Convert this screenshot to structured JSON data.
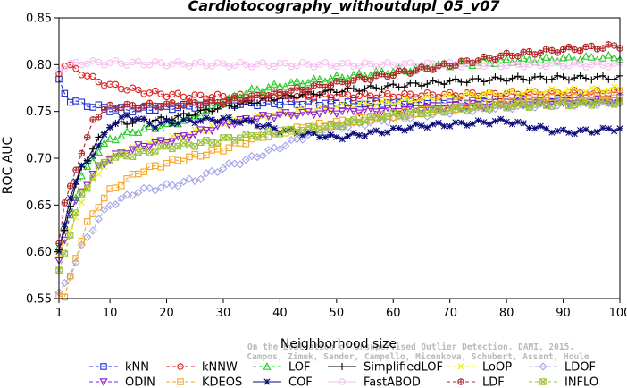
{
  "chart_data": {
    "type": "line",
    "title": "Cardiotocography_withoutdupl_05_v07",
    "xlabel": "Neighborhood size",
    "ylabel": "ROC AUC",
    "xlim": [
      1,
      100
    ],
    "ylim": [
      0.55,
      0.85
    ],
    "xticks": [
      "1",
      "10",
      "20",
      "30",
      "40",
      "50",
      "60",
      "70",
      "80",
      "90",
      "100"
    ],
    "yticks": [
      "0.55",
      "0.60",
      "0.65",
      "0.70",
      "0.75",
      "0.80",
      "0.85"
    ],
    "grid": false,
    "legend_position": "bottom",
    "watermark": [
      "Campos, Zimek, Sander, Campello, Micenkova, Schubert, Assent, Houle",
      "On the Evaluation of Unsupervised Outlier Detection. DAMI, 2015."
    ],
    "series": [
      {
        "name": "kNN",
        "color": "#1f2fcf",
        "marker": "square",
        "dash": "4,3",
        "points": [
          [
            1,
            0.782
          ],
          [
            2,
            0.77
          ],
          [
            3,
            0.762
          ],
          [
            5,
            0.758
          ],
          [
            8,
            0.755
          ],
          [
            10,
            0.752
          ],
          [
            15,
            0.752
          ],
          [
            20,
            0.754
          ],
          [
            30,
            0.758
          ],
          [
            40,
            0.759
          ],
          [
            50,
            0.759
          ],
          [
            60,
            0.76
          ],
          [
            70,
            0.761
          ],
          [
            80,
            0.762
          ],
          [
            90,
            0.763
          ],
          [
            100,
            0.764
          ]
        ]
      },
      {
        "name": "kNNW",
        "color": "#e02020",
        "marker": "circle",
        "dash": "4,3",
        "points": [
          [
            1,
            0.792
          ],
          [
            2,
            0.8
          ],
          [
            4,
            0.795
          ],
          [
            6,
            0.788
          ],
          [
            8,
            0.782
          ],
          [
            10,
            0.778
          ],
          [
            15,
            0.772
          ],
          [
            20,
            0.768
          ],
          [
            25,
            0.766
          ],
          [
            30,
            0.766
          ],
          [
            35,
            0.766
          ],
          [
            40,
            0.766
          ],
          [
            50,
            0.767
          ],
          [
            60,
            0.767
          ],
          [
            70,
            0.768
          ],
          [
            80,
            0.769
          ],
          [
            90,
            0.77
          ],
          [
            100,
            0.771
          ]
        ]
      },
      {
        "name": "LOF",
        "color": "#22cc22",
        "marker": "triangle",
        "dash": "4,3",
        "points": [
          [
            1,
            0.605
          ],
          [
            3,
            0.64
          ],
          [
            5,
            0.68
          ],
          [
            8,
            0.708
          ],
          [
            10,
            0.72
          ],
          [
            15,
            0.73
          ],
          [
            20,
            0.735
          ],
          [
            25,
            0.745
          ],
          [
            30,
            0.76
          ],
          [
            35,
            0.772
          ],
          [
            40,
            0.778
          ],
          [
            50,
            0.786
          ],
          [
            60,
            0.793
          ],
          [
            70,
            0.8
          ],
          [
            80,
            0.804
          ],
          [
            90,
            0.806
          ],
          [
            100,
            0.808
          ]
        ]
      },
      {
        "name": "SimplifiedLOF",
        "color": "#000000",
        "marker": "plus",
        "dash": "",
        "points": [
          [
            1,
            0.6
          ],
          [
            3,
            0.65
          ],
          [
            5,
            0.69
          ],
          [
            8,
            0.72
          ],
          [
            10,
            0.735
          ],
          [
            15,
            0.74
          ],
          [
            20,
            0.742
          ],
          [
            25,
            0.748
          ],
          [
            30,
            0.755
          ],
          [
            40,
            0.765
          ],
          [
            50,
            0.772
          ],
          [
            60,
            0.777
          ],
          [
            70,
            0.782
          ],
          [
            80,
            0.785
          ],
          [
            90,
            0.786
          ],
          [
            100,
            0.786
          ]
        ]
      },
      {
        "name": "LoOP",
        "color": "#f0f000",
        "marker": "x",
        "dash": "4,3",
        "points": [
          [
            1,
            0.6
          ],
          [
            3,
            0.62
          ],
          [
            5,
            0.655
          ],
          [
            8,
            0.685
          ],
          [
            10,
            0.7
          ],
          [
            15,
            0.712
          ],
          [
            20,
            0.72
          ],
          [
            25,
            0.728
          ],
          [
            30,
            0.738
          ],
          [
            40,
            0.748
          ],
          [
            50,
            0.755
          ],
          [
            60,
            0.76
          ],
          [
            70,
            0.766
          ],
          [
            80,
            0.77
          ],
          [
            90,
            0.772
          ],
          [
            100,
            0.774
          ]
        ]
      },
      {
        "name": "LDOF",
        "color": "#a5a5e6",
        "marker": "diamond",
        "dash": "4,3",
        "points": [
          [
            1,
            0.555
          ],
          [
            3,
            0.575
          ],
          [
            5,
            0.605
          ],
          [
            8,
            0.635
          ],
          [
            10,
            0.65
          ],
          [
            15,
            0.665
          ],
          [
            20,
            0.67
          ],
          [
            25,
            0.677
          ],
          [
            30,
            0.69
          ],
          [
            35,
            0.7
          ],
          [
            40,
            0.712
          ],
          [
            45,
            0.725
          ],
          [
            50,
            0.733
          ],
          [
            60,
            0.742
          ],
          [
            70,
            0.75
          ],
          [
            80,
            0.755
          ],
          [
            90,
            0.758
          ],
          [
            100,
            0.76
          ]
        ]
      },
      {
        "name": "ODIN",
        "color": "#8d1fcf",
        "marker": "triangle-down",
        "dash": "4,3",
        "points": [
          [
            1,
            0.59
          ],
          [
            3,
            0.64
          ],
          [
            5,
            0.665
          ],
          [
            8,
            0.69
          ],
          [
            10,
            0.7
          ],
          [
            15,
            0.712
          ],
          [
            20,
            0.718
          ],
          [
            25,
            0.726
          ],
          [
            30,
            0.736
          ],
          [
            35,
            0.742
          ],
          [
            40,
            0.746
          ],
          [
            50,
            0.75
          ],
          [
            60,
            0.752
          ],
          [
            70,
            0.755
          ],
          [
            80,
            0.758
          ],
          [
            90,
            0.76
          ],
          [
            100,
            0.762
          ]
        ]
      },
      {
        "name": "KDEOS",
        "color": "#f5a623",
        "marker": "square",
        "dash": "4,3",
        "points": [
          [
            1,
            0.555
          ],
          [
            2,
            0.55
          ],
          [
            4,
            0.595
          ],
          [
            6,
            0.63
          ],
          [
            8,
            0.65
          ],
          [
            10,
            0.665
          ],
          [
            15,
            0.685
          ],
          [
            20,
            0.695
          ],
          [
            25,
            0.702
          ],
          [
            30,
            0.71
          ],
          [
            35,
            0.72
          ],
          [
            40,
            0.728
          ],
          [
            50,
            0.738
          ],
          [
            60,
            0.746
          ],
          [
            70,
            0.754
          ],
          [
            80,
            0.76
          ],
          [
            90,
            0.764
          ],
          [
            100,
            0.766
          ]
        ]
      },
      {
        "name": "COF",
        "color": "#0b0b7a",
        "marker": "asterisk",
        "dash": "",
        "points": [
          [
            1,
            0.598
          ],
          [
            3,
            0.66
          ],
          [
            5,
            0.69
          ],
          [
            8,
            0.712
          ],
          [
            10,
            0.735
          ],
          [
            13,
            0.745
          ],
          [
            15,
            0.742
          ],
          [
            18,
            0.735
          ],
          [
            20,
            0.738
          ],
          [
            25,
            0.74
          ],
          [
            30,
            0.742
          ],
          [
            35,
            0.738
          ],
          [
            40,
            0.73
          ],
          [
            45,
            0.726
          ],
          [
            50,
            0.722
          ],
          [
            55,
            0.726
          ],
          [
            60,
            0.73
          ],
          [
            65,
            0.735
          ],
          [
            70,
            0.736
          ],
          [
            75,
            0.738
          ],
          [
            80,
            0.74
          ],
          [
            85,
            0.733
          ],
          [
            90,
            0.728
          ],
          [
            95,
            0.729
          ],
          [
            100,
            0.732
          ]
        ]
      },
      {
        "name": "FastABOD",
        "color": "#f5bdf0",
        "marker": "circle",
        "dash": "",
        "points": [
          [
            1,
            0.795
          ],
          [
            3,
            0.8
          ],
          [
            5,
            0.802
          ],
          [
            10,
            0.802
          ],
          [
            20,
            0.801
          ],
          [
            30,
            0.8
          ],
          [
            40,
            0.8
          ],
          [
            50,
            0.8
          ],
          [
            60,
            0.8
          ],
          [
            70,
            0.8
          ],
          [
            80,
            0.8
          ],
          [
            90,
            0.8
          ],
          [
            100,
            0.8
          ]
        ]
      },
      {
        "name": "LDF",
        "color": "#b02828",
        "marker": "circle-plus",
        "dash": "4,3",
        "points": [
          [
            1,
            0.61
          ],
          [
            2,
            0.65
          ],
          [
            4,
            0.69
          ],
          [
            6,
            0.72
          ],
          [
            7,
            0.742
          ],
          [
            10,
            0.755
          ],
          [
            15,
            0.756
          ],
          [
            20,
            0.757
          ],
          [
            30,
            0.76
          ],
          [
            40,
            0.77
          ],
          [
            50,
            0.78
          ],
          [
            60,
            0.79
          ],
          [
            70,
            0.8
          ],
          [
            80,
            0.81
          ],
          [
            90,
            0.816
          ],
          [
            100,
            0.82
          ]
        ]
      },
      {
        "name": "INFLO",
        "color": "#9ac23a",
        "marker": "hourglass",
        "dash": "4,3",
        "points": [
          [
            1,
            0.578
          ],
          [
            3,
            0.62
          ],
          [
            5,
            0.66
          ],
          [
            8,
            0.69
          ],
          [
            10,
            0.7
          ],
          [
            15,
            0.705
          ],
          [
            20,
            0.712
          ],
          [
            25,
            0.715
          ],
          [
            30,
            0.72
          ],
          [
            40,
            0.728
          ],
          [
            50,
            0.735
          ],
          [
            55,
            0.742
          ],
          [
            60,
            0.746
          ],
          [
            70,
            0.752
          ],
          [
            80,
            0.756
          ],
          [
            90,
            0.758
          ],
          [
            100,
            0.76
          ]
        ]
      }
    ]
  }
}
